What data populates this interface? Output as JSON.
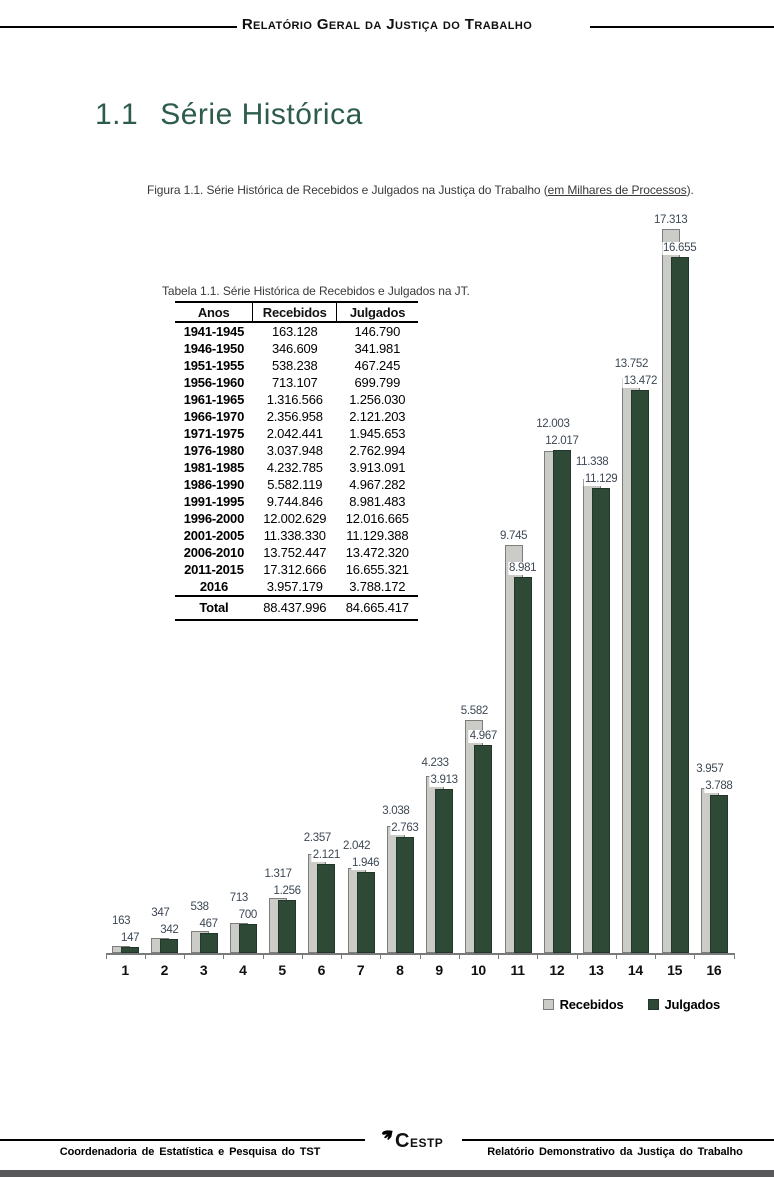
{
  "header": {
    "title": "Relatório Geral da Justiça do Trabalho"
  },
  "section": {
    "number": "1.1",
    "title": "Série Histórica"
  },
  "figure": {
    "caption_prefix": "Figura 1.1. Série Histórica de Recebidos e Julgados na Justiça do Trabalho (",
    "caption_underline": "em Milhares de Processos",
    "caption_suffix": ")."
  },
  "table": {
    "title": "Tabela 1.1. Série Histórica de Recebidos e Julgados na JT.",
    "columns": [
      "Anos",
      "Recebidos",
      "Julgados"
    ],
    "rows": [
      [
        "1941-1945",
        "163.128",
        "146.790"
      ],
      [
        "1946-1950",
        "346.609",
        "341.981"
      ],
      [
        "1951-1955",
        "538.238",
        "467.245"
      ],
      [
        "1956-1960",
        "713.107",
        "699.799"
      ],
      [
        "1961-1965",
        "1.316.566",
        "1.256.030"
      ],
      [
        "1966-1970",
        "2.356.958",
        "2.121.203"
      ],
      [
        "1971-1975",
        "2.042.441",
        "1.945.653"
      ],
      [
        "1976-1980",
        "3.037.948",
        "2.762.994"
      ],
      [
        "1981-1985",
        "4.232.785",
        "3.913.091"
      ],
      [
        "1986-1990",
        "5.582.119",
        "4.967.282"
      ],
      [
        "1991-1995",
        "9.744.846",
        "8.981.483"
      ],
      [
        "1996-2000",
        "12.002.629",
        "12.016.665"
      ],
      [
        "2001-2005",
        "11.338.330",
        "11.129.388"
      ],
      [
        "2006-2010",
        "13.752.447",
        "13.472.320"
      ],
      [
        "2011-2015",
        "17.312.666",
        "16.655.321"
      ],
      [
        "2016",
        "3.957.179",
        "3.788.172"
      ]
    ],
    "total": [
      "Total",
      "88.437.996",
      "84.665.417"
    ]
  },
  "chart_data": {
    "type": "bar",
    "title": "Série Histórica de Recebidos e Julgados na Justiça do Trabalho (em Milhares de Processos)",
    "categories": [
      "1",
      "2",
      "3",
      "4",
      "5",
      "6",
      "7",
      "8",
      "9",
      "10",
      "11",
      "12",
      "13",
      "14",
      "15",
      "16"
    ],
    "series": [
      {
        "name": "Recebidos",
        "color": "#cbcbc8",
        "values": [
          163,
          347,
          538,
          713,
          1317,
          2357,
          2042,
          3038,
          4233,
          5582,
          9745,
          12003,
          11338,
          13752,
          17313,
          3957
        ],
        "labels": [
          "163",
          "347",
          "538",
          "713",
          "1.317",
          "2.357",
          "2.042",
          "3.038",
          "4.233",
          "5.582",
          "9.745",
          "12.003",
          "11.338",
          "13.752",
          "17.313",
          "3.957"
        ]
      },
      {
        "name": "Julgados",
        "color": "#2e4936",
        "values": [
          147,
          342,
          467,
          700,
          1256,
          2121,
          1946,
          2763,
          3913,
          4967,
          8981,
          12017,
          11129,
          13472,
          16655,
          3788
        ],
        "labels": [
          "147",
          "342",
          "467",
          "700",
          "1.256",
          "2.121",
          "1.946",
          "2.763",
          "3.913",
          "4.967",
          "8.981",
          "12.017",
          "11.129",
          "13.472",
          "16.655",
          "3.788"
        ]
      }
    ],
    "xlabel": "",
    "ylabel": "",
    "ylim": [
      0,
      17313
    ],
    "grid": false,
    "legend_position": "bottom-right",
    "value_labels": true
  },
  "footer": {
    "left": "Coordenadoria de Estatística e Pesquisa do TST",
    "logo": "CESTP",
    "right": "Relatório Demonstrativo da Justiça do Trabalho"
  }
}
